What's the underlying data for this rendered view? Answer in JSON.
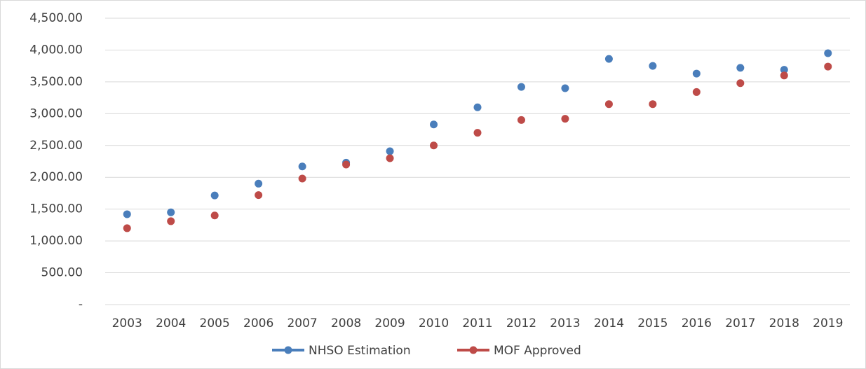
{
  "chart_data": {
    "type": "line",
    "categories": [
      "2003",
      "2004",
      "2005",
      "2006",
      "2007",
      "2008",
      "2009",
      "2010",
      "2011",
      "2012",
      "2013",
      "2014",
      "2015",
      "2016",
      "2017",
      "2018",
      "2019"
    ],
    "series": [
      {
        "name": "NHSO Estimation",
        "color": "#4a7ebb",
        "values": [
          1420,
          1450,
          1715,
          1900,
          2170,
          2230,
          2410,
          2830,
          3100,
          3420,
          3400,
          3860,
          3750,
          3630,
          3720,
          3690,
          3950
        ]
      },
      {
        "name": "MOF Approved",
        "color": "#be4b48",
        "values": [
          1200,
          1310,
          1400,
          1720,
          1980,
          2200,
          2300,
          2500,
          2700,
          2900,
          2920,
          3150,
          3150,
          3340,
          3480,
          3600,
          3740
        ]
      }
    ],
    "ylim": [
      0,
      4500
    ],
    "yticks": [
      {
        "value": 0,
        "label": "-"
      },
      {
        "value": 500,
        "label": "500.00"
      },
      {
        "value": 1000,
        "label": "1,000.00"
      },
      {
        "value": 1500,
        "label": "1,500.00"
      },
      {
        "value": 2000,
        "label": "2,000.00"
      },
      {
        "value": 2500,
        "label": "2,500.00"
      },
      {
        "value": 3000,
        "label": "3,000.00"
      },
      {
        "value": 3500,
        "label": "3,500.00"
      },
      {
        "value": 4000,
        "label": "4,000.00"
      },
      {
        "value": 4500,
        "label": "4,500.00"
      }
    ],
    "grid": true,
    "legend": "bottom"
  }
}
